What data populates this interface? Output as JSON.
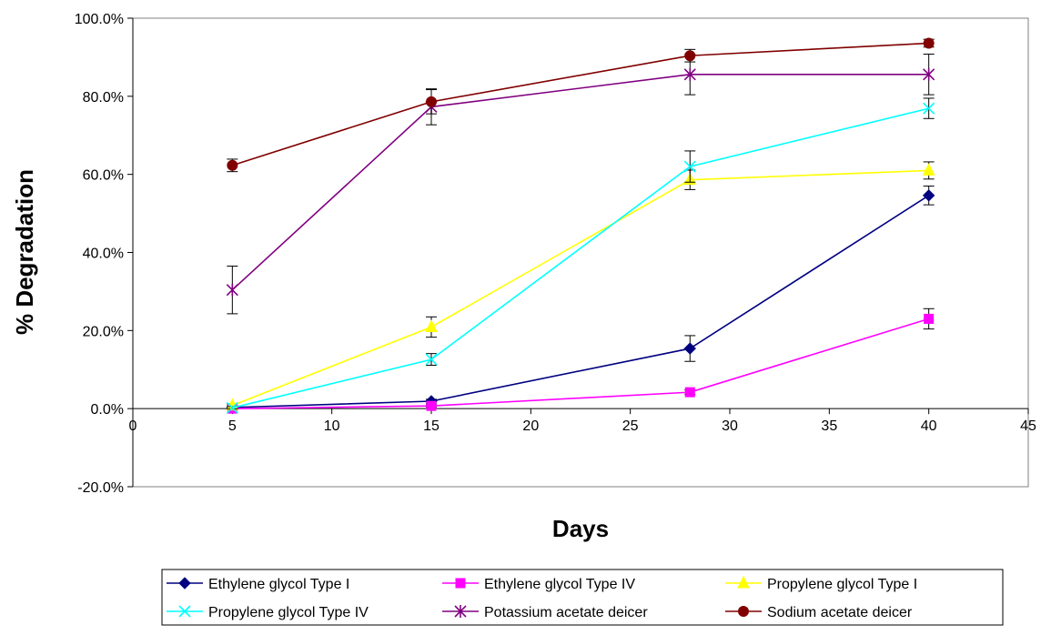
{
  "chart_data": {
    "type": "line",
    "xlabel": "Days",
    "ylabel": "% Degradation",
    "xlim": [
      0,
      45
    ],
    "ylim": [
      -20,
      100
    ],
    "x_ticks": [
      "0",
      "5",
      "10",
      "15",
      "20",
      "25",
      "30",
      "35",
      "40",
      "45"
    ],
    "y_ticks": [
      "-20.0%",
      "0.0%",
      "20.0%",
      "40.0%",
      "60.0%",
      "80.0%",
      "100.0%"
    ],
    "grid": false,
    "legend_position": "bottom",
    "x": [
      5,
      15,
      28,
      40
    ],
    "series": [
      {
        "name": "Ethylene glycol Type I",
        "values": [
          0.3,
          1.9,
          15.4,
          54.6
        ],
        "error": [
          0.5,
          0.5,
          3.3,
          2.4
        ],
        "color": "#000080",
        "marker": "diamond"
      },
      {
        "name": "Ethylene glycol Type IV",
        "values": [
          0.0,
          0.7,
          4.2,
          23.0
        ],
        "error": [
          0.3,
          0.3,
          0.6,
          2.6
        ],
        "color": "#ff00ff",
        "marker": "square"
      },
      {
        "name": "Propylene glycol Type I",
        "values": [
          0.8,
          20.9,
          58.6,
          61.0
        ],
        "error": [
          0.4,
          2.6,
          2.5,
          2.2
        ],
        "color": "#ffff00",
        "marker": "triangle"
      },
      {
        "name": "Propylene glycol Type IV",
        "values": [
          0.2,
          12.6,
          62.0,
          76.9
        ],
        "error": [
          0.3,
          1.5,
          4.0,
          2.6
        ],
        "color": "#00ffff",
        "marker": "x"
      },
      {
        "name": "Potassium acetate deicer",
        "values": [
          30.4,
          77.3,
          85.6,
          85.6
        ],
        "error": [
          6.1,
          4.6,
          5.2,
          5.2
        ],
        "color": "#800080",
        "marker": "star"
      },
      {
        "name": "Sodium acetate deicer",
        "values": [
          62.3,
          78.6,
          90.4,
          93.6
        ],
        "error": [
          1.6,
          3.1,
          1.6,
          1.0
        ],
        "color": "#800000",
        "marker": "circle"
      }
    ]
  }
}
